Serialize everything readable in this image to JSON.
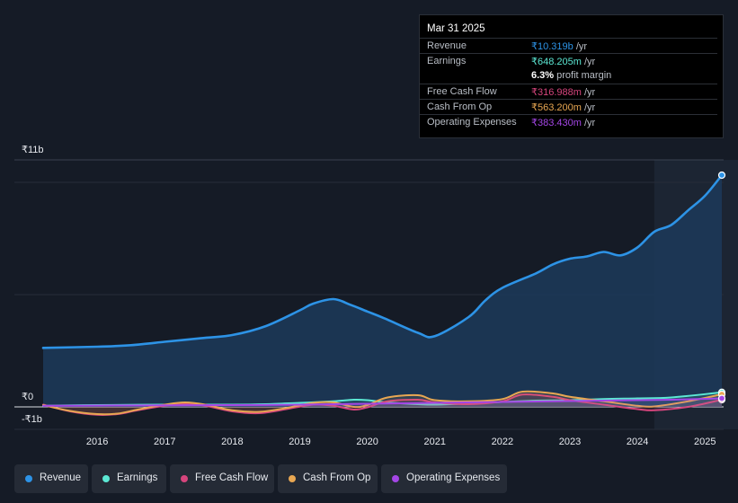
{
  "colors": {
    "revenue": "#2d93e6",
    "earnings": "#5ce8d4",
    "free_cash_flow": "#d6457d",
    "cash_from_op": "#e8a752",
    "operating_expenses": "#a446e6",
    "background": "#151b26"
  },
  "tooltip": {
    "date": "Mar 31 2025",
    "rows": [
      {
        "label": "Revenue",
        "value": "₹10.319b",
        "unit": " /yr",
        "color": "#2d93e6"
      },
      {
        "label": "Earnings",
        "value": "₹648.205m",
        "unit": " /yr",
        "color": "#5ce8d4"
      },
      {
        "label": "Free Cash Flow",
        "value": "₹316.988m",
        "unit": " /yr",
        "color": "#d6457d"
      },
      {
        "label": "Cash From Op",
        "value": "₹563.200m",
        "unit": " /yr",
        "color": "#e8a752"
      },
      {
        "label": "Operating Expenses",
        "value": "₹383.430m",
        "unit": " /yr",
        "color": "#a446e6"
      }
    ],
    "profit_margin_pct": "6.3%",
    "profit_margin_text": " profit margin"
  },
  "legend": [
    {
      "name": "Revenue",
      "color": "#2d93e6"
    },
    {
      "name": "Earnings",
      "color": "#5ce8d4"
    },
    {
      "name": "Free Cash Flow",
      "color": "#d6457d"
    },
    {
      "name": "Cash From Op",
      "color": "#e8a752"
    },
    {
      "name": "Operating Expenses",
      "color": "#a446e6"
    }
  ],
  "chart_data": {
    "type": "area",
    "y_unit": "₹ billions",
    "ylim": [
      -1,
      11
    ],
    "y_labels": [
      {
        "value": 11,
        "text": "₹11b"
      },
      {
        "value": 0,
        "text": "₹0"
      },
      {
        "value": -1,
        "text": "-₹1b"
      }
    ],
    "xlim": [
      2015.2,
      2025.25
    ],
    "x_ticks": [
      2016,
      2017,
      2018,
      2019,
      2020,
      2021,
      2022,
      2023,
      2024,
      2025
    ],
    "x_tick_labels": [
      "2016",
      "2017",
      "2018",
      "2019",
      "2020",
      "2021",
      "2022",
      "2023",
      "2024",
      "2025"
    ],
    "highlight_from": 2024.25,
    "series": [
      {
        "name": "Revenue",
        "key": "revenue",
        "area": true,
        "points": [
          [
            2015.2,
            2.63
          ],
          [
            2016.0,
            2.68
          ],
          [
            2016.5,
            2.75
          ],
          [
            2017.0,
            2.9
          ],
          [
            2017.5,
            3.05
          ],
          [
            2018.0,
            3.2
          ],
          [
            2018.5,
            3.6
          ],
          [
            2019.0,
            4.3
          ],
          [
            2019.2,
            4.6
          ],
          [
            2019.5,
            4.8
          ],
          [
            2019.75,
            4.55
          ],
          [
            2020.0,
            4.25
          ],
          [
            2020.25,
            3.95
          ],
          [
            2020.75,
            3.3
          ],
          [
            2021.0,
            3.15
          ],
          [
            2021.5,
            4.0
          ],
          [
            2021.75,
            4.75
          ],
          [
            2022.0,
            5.3
          ],
          [
            2022.5,
            5.95
          ],
          [
            2022.75,
            6.35
          ],
          [
            2023.0,
            6.6
          ],
          [
            2023.25,
            6.7
          ],
          [
            2023.5,
            6.9
          ],
          [
            2023.75,
            6.75
          ],
          [
            2024.0,
            7.1
          ],
          [
            2024.25,
            7.8
          ],
          [
            2024.5,
            8.1
          ],
          [
            2024.75,
            8.75
          ],
          [
            2025.0,
            9.4
          ],
          [
            2025.25,
            10.32
          ]
        ]
      },
      {
        "name": "Earnings",
        "key": "earnings",
        "area": false,
        "points": [
          [
            2015.2,
            0.05
          ],
          [
            2016.0,
            0.08
          ],
          [
            2017.0,
            0.1
          ],
          [
            2018.0,
            0.1
          ],
          [
            2018.5,
            0.12
          ],
          [
            2019.0,
            0.18
          ],
          [
            2019.5,
            0.25
          ],
          [
            2019.8,
            0.32
          ],
          [
            2020.0,
            0.3
          ],
          [
            2020.3,
            0.2
          ],
          [
            2020.75,
            0.12
          ],
          [
            2021.0,
            0.1
          ],
          [
            2021.5,
            0.15
          ],
          [
            2022.0,
            0.22
          ],
          [
            2022.5,
            0.28
          ],
          [
            2023.0,
            0.3
          ],
          [
            2023.5,
            0.35
          ],
          [
            2024.0,
            0.38
          ],
          [
            2024.5,
            0.42
          ],
          [
            2025.25,
            0.65
          ]
        ]
      },
      {
        "name": "Free Cash Flow",
        "key": "free_cash_flow",
        "area": false,
        "points": [
          [
            2015.2,
            0.1
          ],
          [
            2015.6,
            -0.2
          ],
          [
            2016.0,
            -0.35
          ],
          [
            2016.3,
            -0.32
          ],
          [
            2016.6,
            -0.15
          ],
          [
            2017.0,
            0.05
          ],
          [
            2017.3,
            0.15
          ],
          [
            2017.6,
            0.05
          ],
          [
            2018.0,
            -0.2
          ],
          [
            2018.4,
            -0.28
          ],
          [
            2018.8,
            -0.1
          ],
          [
            2019.2,
            0.1
          ],
          [
            2019.5,
            0.05
          ],
          [
            2019.8,
            -0.12
          ],
          [
            2020.0,
            -0.02
          ],
          [
            2020.3,
            0.25
          ],
          [
            2020.75,
            0.32
          ],
          [
            2021.0,
            0.2
          ],
          [
            2021.5,
            0.12
          ],
          [
            2022.0,
            0.25
          ],
          [
            2022.3,
            0.55
          ],
          [
            2022.75,
            0.45
          ],
          [
            2023.0,
            0.3
          ],
          [
            2023.5,
            0.1
          ],
          [
            2024.0,
            -0.1
          ],
          [
            2024.25,
            -0.15
          ],
          [
            2024.75,
            0.0
          ],
          [
            2025.25,
            0.32
          ]
        ]
      },
      {
        "name": "Cash From Op",
        "key": "cash_from_op",
        "area": false,
        "points": [
          [
            2015.2,
            0.08
          ],
          [
            2015.6,
            -0.18
          ],
          [
            2016.0,
            -0.32
          ],
          [
            2016.3,
            -0.3
          ],
          [
            2016.6,
            -0.12
          ],
          [
            2017.0,
            0.1
          ],
          [
            2017.3,
            0.2
          ],
          [
            2017.6,
            0.1
          ],
          [
            2018.0,
            -0.15
          ],
          [
            2018.4,
            -0.22
          ],
          [
            2018.8,
            -0.05
          ],
          [
            2019.2,
            0.18
          ],
          [
            2019.5,
            0.2
          ],
          [
            2019.8,
            0.0
          ],
          [
            2020.0,
            0.08
          ],
          [
            2020.3,
            0.42
          ],
          [
            2020.75,
            0.52
          ],
          [
            2021.0,
            0.3
          ],
          [
            2021.5,
            0.25
          ],
          [
            2022.0,
            0.35
          ],
          [
            2022.3,
            0.68
          ],
          [
            2022.75,
            0.6
          ],
          [
            2023.0,
            0.45
          ],
          [
            2023.5,
            0.25
          ],
          [
            2024.0,
            0.05
          ],
          [
            2024.25,
            0.02
          ],
          [
            2024.75,
            0.25
          ],
          [
            2025.25,
            0.56
          ]
        ]
      },
      {
        "name": "Operating Expenses",
        "key": "operating_expenses",
        "area": false,
        "points": [
          [
            2015.2,
            0.05
          ],
          [
            2016.0,
            0.06
          ],
          [
            2017.0,
            0.07
          ],
          [
            2018.0,
            0.08
          ],
          [
            2019.0,
            0.1
          ],
          [
            2020.0,
            0.14
          ],
          [
            2021.0,
            0.18
          ],
          [
            2022.0,
            0.22
          ],
          [
            2023.0,
            0.26
          ],
          [
            2024.0,
            0.3
          ],
          [
            2024.5,
            0.32
          ],
          [
            2025.25,
            0.38
          ]
        ]
      }
    ]
  }
}
